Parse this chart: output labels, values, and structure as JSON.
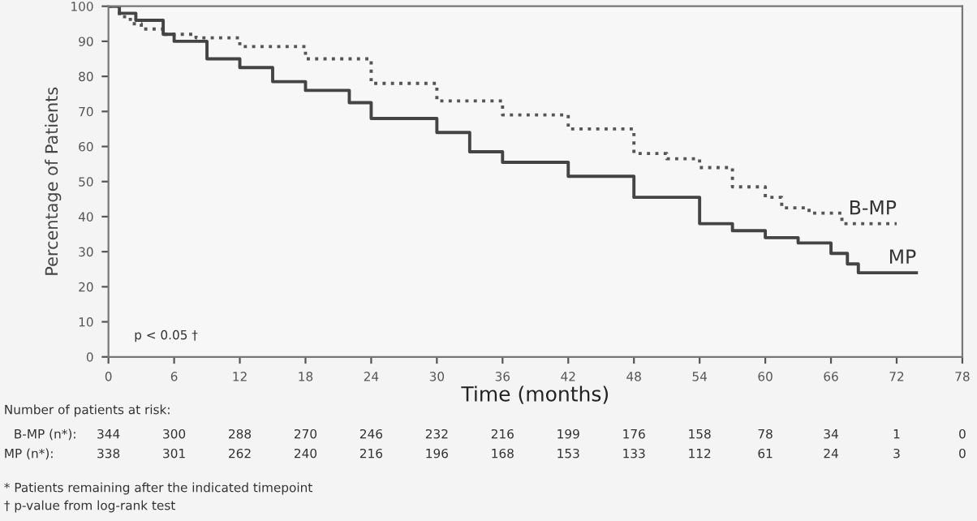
{
  "chart_data": {
    "type": "step",
    "xlabel": "Time (months)",
    "ylabel": "Percentage of Patients",
    "xlim": [
      0,
      78
    ],
    "xticks": [
      0,
      6,
      12,
      18,
      24,
      30,
      36,
      42,
      48,
      54,
      60,
      66,
      72,
      78
    ],
    "ylim": [
      0,
      100
    ],
    "yticks": [
      0,
      10,
      20,
      30,
      40,
      50,
      60,
      70,
      80,
      90,
      100
    ],
    "grid": false,
    "legend": false,
    "series": [
      {
        "name": "B-MP",
        "color": "#555555",
        "line_style": "dotted",
        "x": [
          0,
          1,
          2,
          3,
          5,
          8,
          12,
          18,
          24,
          30,
          36,
          42,
          48,
          51,
          54,
          57,
          60,
          61.5,
          64,
          67,
          72
        ],
        "values": [
          100,
          97,
          95,
          93.5,
          92,
          91,
          88.5,
          85,
          78,
          73,
          69,
          65,
          58,
          56.5,
          54,
          48.5,
          45.5,
          42.5,
          41,
          38,
          38
        ]
      },
      {
        "name": "MP",
        "color": "#444444",
        "line_style": "solid",
        "x": [
          0,
          1,
          2.5,
          5,
          6,
          9,
          12,
          15,
          18,
          22,
          24,
          30,
          33,
          36,
          42,
          48,
          54,
          57,
          60,
          63,
          66,
          67.5,
          68.5,
          73.8
        ],
        "values": [
          100,
          98,
          96,
          92,
          90,
          85,
          82.5,
          78.5,
          76,
          72.5,
          68,
          64,
          58.5,
          55.5,
          51.5,
          45.5,
          38,
          36,
          34,
          32.5,
          29.5,
          26.5,
          24,
          24
        ]
      }
    ],
    "annotations": [
      "p < 0.05 †",
      "Number of patients at risk:",
      "B-MP (n*):",
      "344",
      "300",
      "288",
      "270",
      "246",
      "232",
      "216",
      "199",
      "176",
      "158",
      "78",
      "34",
      "1",
      "0",
      "MP (n*):",
      "338",
      "301",
      "262",
      "240",
      "216",
      "196",
      "168",
      "153",
      "133",
      "112",
      "61",
      "24",
      "3",
      "0",
      "* Patients remaining after the indicated timepoint",
      "† p-value from log-rank test"
    ]
  }
}
